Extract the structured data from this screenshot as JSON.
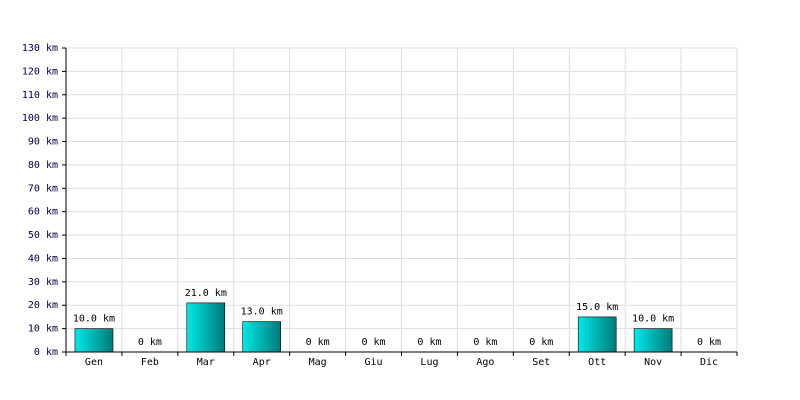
{
  "chart_data": {
    "type": "bar",
    "categories": [
      "Gen",
      "Feb",
      "Mar",
      "Apr",
      "Mag",
      "Giu",
      "Lug",
      "Ago",
      "Set",
      "Ott",
      "Nov",
      "Dic"
    ],
    "values": [
      10,
      0,
      21,
      13,
      0,
      0,
      0,
      0,
      0,
      15,
      10,
      0
    ],
    "value_labels": [
      "10.0 km",
      "0 km",
      "21.0 km",
      "13.0 km",
      "0 km",
      "0 km",
      "0 km",
      "0 km",
      "0 km",
      "15.0 km",
      "10.0 km",
      "0 km"
    ],
    "color": "#00e8e8",
    "ylim": [
      0,
      130
    ],
    "yticks": [
      {
        "value": 0,
        "label": "0 km"
      },
      {
        "value": 10,
        "label": "10 km"
      },
      {
        "value": 20,
        "label": "20 km"
      },
      {
        "value": 30,
        "label": "30 km"
      },
      {
        "value": 40,
        "label": "40 km"
      },
      {
        "value": 50,
        "label": "50 km"
      },
      {
        "value": 60,
        "label": "60 km"
      },
      {
        "value": 70,
        "label": "70 km"
      },
      {
        "value": 80,
        "label": "80 km"
      },
      {
        "value": 90,
        "label": "90 km"
      },
      {
        "value": 100,
        "label": "100 km"
      },
      {
        "value": 110,
        "label": "110 km"
      },
      {
        "value": 120,
        "label": "120 km"
      },
      {
        "value": 130,
        "label": "130 km"
      }
    ],
    "grid": true
  }
}
